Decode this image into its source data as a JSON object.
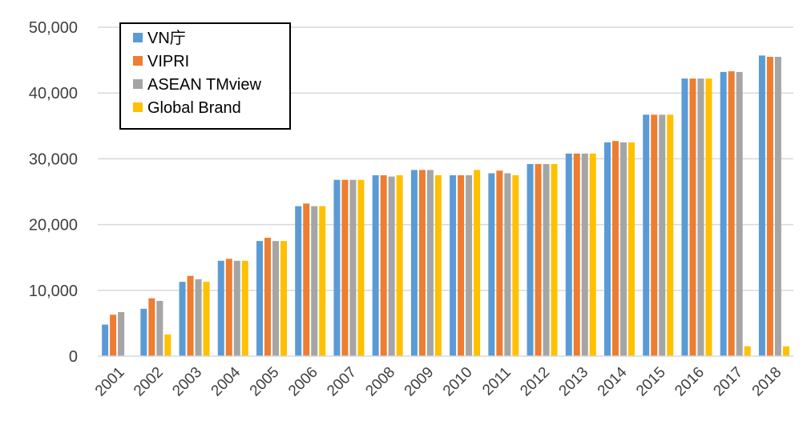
{
  "chart_data": {
    "type": "bar",
    "title": "",
    "xlabel": "",
    "ylabel": "",
    "ylim": [
      0,
      50000
    ],
    "yticks": [
      0,
      10000,
      20000,
      30000,
      40000,
      50000
    ],
    "ytick_labels": [
      "0",
      "10,000",
      "20,000",
      "30,000",
      "40,000",
      "50,000"
    ],
    "grid": true,
    "legend_position": "top-left",
    "categories": [
      "2001",
      "2002",
      "2003",
      "2004",
      "2005",
      "2006",
      "2007",
      "2008",
      "2009",
      "2010",
      "2011",
      "2012",
      "2013",
      "2014",
      "2015",
      "2016",
      "2017",
      "2018"
    ],
    "series": [
      {
        "name": "VN庁",
        "color": "#5B9BD5",
        "values": [
          4800,
          7200,
          11300,
          14500,
          17500,
          22800,
          26800,
          27500,
          28300,
          27500,
          27800,
          29200,
          30800,
          32500,
          36700,
          42200,
          43200,
          45700
        ]
      },
      {
        "name": "VIPRI",
        "color": "#ED7D31",
        "values": [
          6300,
          8800,
          12200,
          14800,
          18000,
          23200,
          26800,
          27500,
          28300,
          27500,
          28200,
          29200,
          30800,
          32700,
          36700,
          42200,
          43300,
          45500
        ]
      },
      {
        "name": "ASEAN TMview",
        "color": "#A5A5A5",
        "values": [
          6700,
          8400,
          11700,
          14500,
          17500,
          22800,
          26800,
          27300,
          28300,
          27500,
          27800,
          29200,
          30800,
          32500,
          36700,
          42200,
          43200,
          45500
        ]
      },
      {
        "name": "Global Brand",
        "color": "#FFC000",
        "values": [
          null,
          3300,
          11300,
          14500,
          17500,
          22800,
          26800,
          27500,
          27500,
          28300,
          27500,
          29200,
          30800,
          32500,
          36700,
          42200,
          1500,
          1500
        ]
      }
    ]
  }
}
